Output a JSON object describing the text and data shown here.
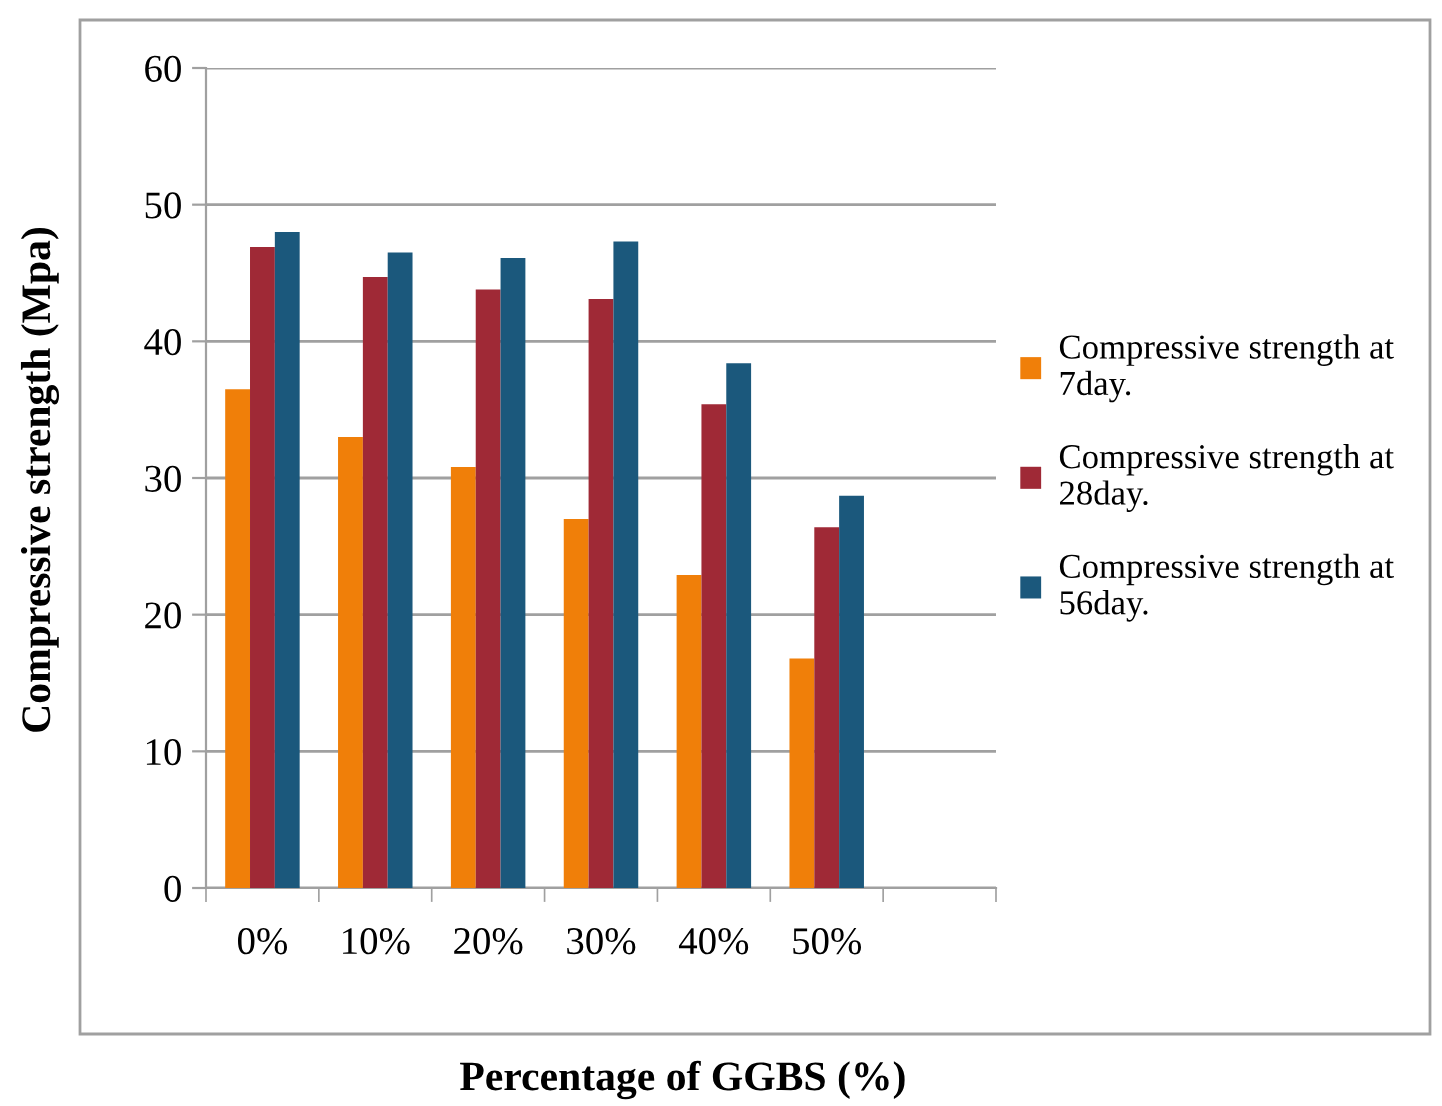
{
  "chart_data": {
    "type": "bar",
    "xlabel": "Percentage of GGBS (%)",
    "ylabel": "Compressive strength (Mpa)",
    "categories": [
      "0%",
      "10%",
      "20%",
      "30%",
      "40%",
      "50%",
      null
    ],
    "series": [
      {
        "name": "Compressive strength at 7day.",
        "color": "#f07f09",
        "values": [
          36.5,
          33.0,
          30.8,
          27.0,
          22.9,
          16.8,
          null
        ]
      },
      {
        "name": "Compressive strength at 28day.",
        "color": "#9f2936",
        "values": [
          46.9,
          44.7,
          43.8,
          43.1,
          35.4,
          26.4,
          null
        ]
      },
      {
        "name": "Compressive strength at 56day.",
        "color": "#1b587c",
        "values": [
          48.0,
          46.5,
          46.1,
          47.3,
          38.4,
          28.7,
          null
        ]
      }
    ],
    "ylim": [
      0,
      60
    ],
    "yticks": [
      0,
      10,
      20,
      30,
      40,
      50,
      60
    ],
    "grid": "y",
    "legend": "right"
  }
}
